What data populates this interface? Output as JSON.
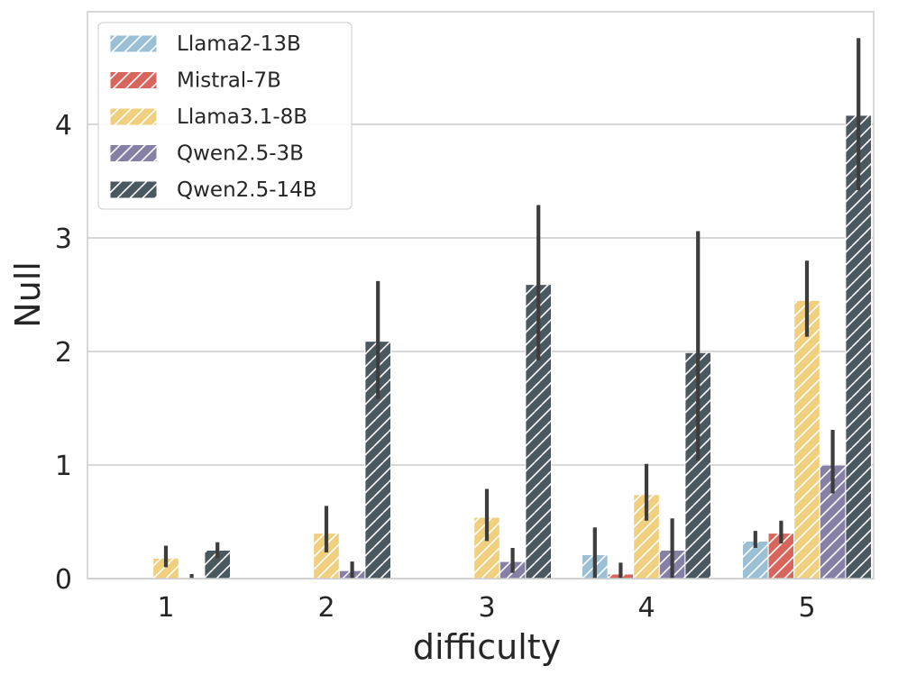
{
  "chart_data": {
    "type": "bar",
    "title": "",
    "xlabel": "difficulty",
    "ylabel": "Null",
    "categories": [
      "1",
      "2",
      "3",
      "4",
      "5"
    ],
    "ylim": [
      0,
      5.0
    ],
    "yticks": [
      0,
      1,
      2,
      3,
      4
    ],
    "ytick_labels": [
      "0",
      "1",
      "2",
      "3",
      "4"
    ],
    "grid": true,
    "legend_position": "top-left",
    "hatch": "diagonal",
    "series": [
      {
        "name": "Llama2-13B",
        "color": "#9bbfd4",
        "values": [
          0.0,
          0.0,
          0.0,
          0.21,
          0.33
        ],
        "err_low": [
          0.0,
          0.0,
          0.0,
          0.0,
          0.27
        ],
        "err_high": [
          0.0,
          0.0,
          0.0,
          0.45,
          0.42
        ]
      },
      {
        "name": "Mistral-7B",
        "color": "#d9665c",
        "values": [
          0.0,
          0.0,
          0.0,
          0.04,
          0.4
        ],
        "err_low": [
          0.0,
          0.0,
          0.0,
          0.0,
          0.31
        ],
        "err_high": [
          0.0,
          0.0,
          0.0,
          0.14,
          0.51
        ]
      },
      {
        "name": "Llama3.1-8B",
        "color": "#f0cf7e",
        "values": [
          0.18,
          0.4,
          0.54,
          0.74,
          2.45
        ],
        "err_low": [
          0.1,
          0.23,
          0.33,
          0.51,
          2.13
        ],
        "err_high": [
          0.29,
          0.64,
          0.79,
          1.01,
          2.8
        ]
      },
      {
        "name": "Qwen2.5-3B",
        "color": "#8680a7",
        "values": [
          0.0,
          0.07,
          0.15,
          0.25,
          1.0
        ],
        "err_low": [
          0.0,
          0.0,
          0.05,
          0.0,
          0.75
        ],
        "err_high": [
          0.04,
          0.15,
          0.27,
          0.53,
          1.31
        ]
      },
      {
        "name": "Qwen2.5-14B",
        "color": "#4a5860",
        "values": [
          0.25,
          2.09,
          2.59,
          1.99,
          4.08
        ],
        "err_low": [
          0.18,
          1.58,
          1.92,
          1.04,
          3.42
        ],
        "err_high": [
          0.32,
          2.62,
          3.29,
          3.06,
          4.76
        ]
      }
    ]
  }
}
